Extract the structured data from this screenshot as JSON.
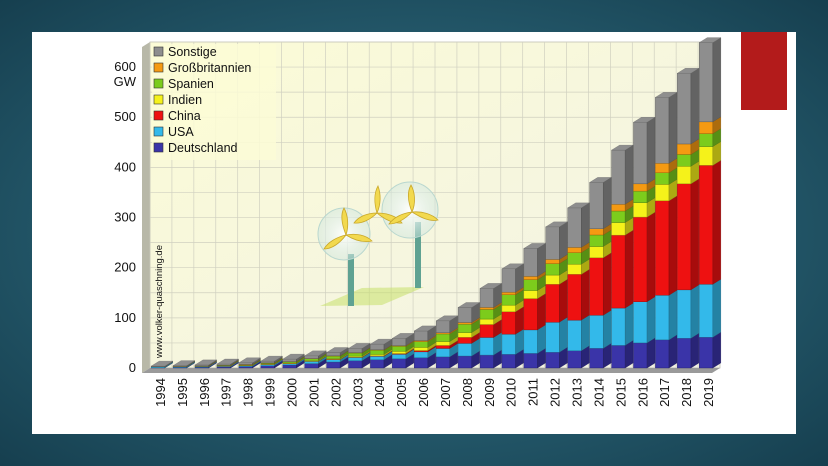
{
  "chart_data": {
    "type": "bar",
    "stacked": true,
    "y_unit": "GW",
    "ylim": [
      0,
      650
    ],
    "y_ticks": [
      "0",
      "100",
      "200",
      "300",
      "400",
      "500",
      "600"
    ],
    "grid": true,
    "legend_position": "top-left",
    "watermark": "www.volker-quaschning.de",
    "categories": [
      "1994",
      "1995",
      "1996",
      "1997",
      "1998",
      "1999",
      "2000",
      "2001",
      "2002",
      "2003",
      "2004",
      "2005",
      "2006",
      "2007",
      "2008",
      "2009",
      "2010",
      "2011",
      "2012",
      "2013",
      "2014",
      "2015",
      "2016",
      "2017",
      "2018",
      "2019"
    ],
    "series": [
      {
        "name": "Deutschland",
        "color": "#3a34a8",
        "values": [
          0.6,
          1.1,
          1.5,
          2.1,
          2.9,
          4.4,
          6.1,
          8.8,
          12.0,
          14.6,
          16.6,
          18.4,
          20.6,
          22.2,
          23.9,
          25.8,
          27.2,
          29.1,
          31.3,
          34.3,
          39.2,
          45.0,
          50.0,
          56.1,
          59.3,
          61.4
        ]
      },
      {
        "name": "USA",
        "color": "#33b9ea",
        "values": [
          1.7,
          1.6,
          1.6,
          1.6,
          1.8,
          2.5,
          2.6,
          4.3,
          4.7,
          6.4,
          6.7,
          9.1,
          11.6,
          16.8,
          25.2,
          35.1,
          40.3,
          46.9,
          60.0,
          61.1,
          65.9,
          74.5,
          82.2,
          89.0,
          96.5,
          105.6
        ]
      },
      {
        "name": "China",
        "color": "#ee1111",
        "values": [
          0,
          0,
          0.1,
          0.2,
          0.2,
          0.3,
          0.3,
          0.4,
          0.5,
          0.6,
          0.8,
          1.3,
          2.6,
          5.9,
          12.0,
          25.8,
          44.7,
          62.4,
          75.6,
          91.4,
          114.6,
          145.4,
          168.7,
          188.2,
          211.4,
          237.0
        ]
      },
      {
        "name": "Indien",
        "color": "#f5f21a",
        "values": [
          0,
          0.1,
          0.5,
          0.9,
          1.0,
          1.1,
          1.2,
          1.5,
          1.7,
          2.1,
          3.0,
          4.4,
          6.3,
          7.9,
          9.6,
          10.9,
          13.1,
          16.1,
          18.4,
          20.2,
          22.5,
          25.1,
          28.7,
          32.8,
          35.0,
          37.5
        ]
      },
      {
        "name": "Spanien",
        "color": "#7ccc1c",
        "values": [
          0,
          0.1,
          0.2,
          0.4,
          0.8,
          1.5,
          2.2,
          3.3,
          4.8,
          6.2,
          8.3,
          10.0,
          11.6,
          15.1,
          16.7,
          19.1,
          20.7,
          21.7,
          22.8,
          23.0,
          23.0,
          23.0,
          23.1,
          23.2,
          23.5,
          25.8
        ]
      },
      {
        "name": "Großbritannien",
        "color": "#f59a12",
        "values": [
          0.2,
          0.2,
          0.3,
          0.3,
          0.3,
          0.4,
          0.4,
          0.5,
          0.6,
          0.7,
          0.9,
          1.4,
          2.0,
          2.4,
          3.3,
          4.1,
          5.2,
          6.5,
          8.4,
          10.5,
          12.4,
          13.6,
          14.5,
          18.9,
          21.0,
          23.5
        ]
      },
      {
        "name": "Sonstige",
        "color": "#8e8e8e",
        "values": [
          1.3,
          1.7,
          2.0,
          2.4,
          3.4,
          3.5,
          4.9,
          5.5,
          6.6,
          8.5,
          11.3,
          14.5,
          19.2,
          23.8,
          30.0,
          37.9,
          46.6,
          55.7,
          65.0,
          78.8,
          92.4,
          107.8,
          122.8,
          131.5,
          141.0,
          158.0
        ]
      }
    ]
  }
}
